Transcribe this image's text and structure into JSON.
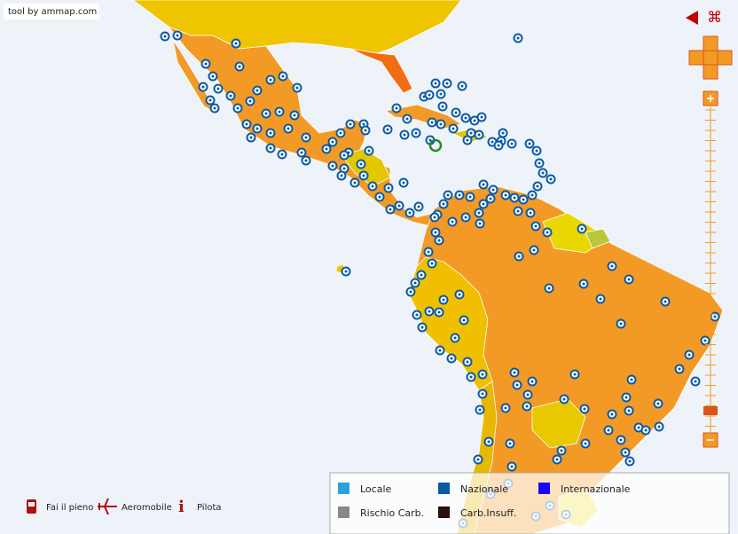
{
  "credit": "tool by ammap.com",
  "legend": {
    "items": [
      {
        "label": "Locale"
      },
      {
        "label": "Nazionale"
      },
      {
        "label": "Internazionale"
      },
      {
        "label": "Rischio Carb."
      },
      {
        "label": "Carb.Insuff."
      }
    ]
  },
  "toolbar": {
    "buttons": [
      {
        "label": "Fai il pieno"
      },
      {
        "label": "Aeromobile"
      },
      {
        "label": "Pilota"
      }
    ]
  }
}
